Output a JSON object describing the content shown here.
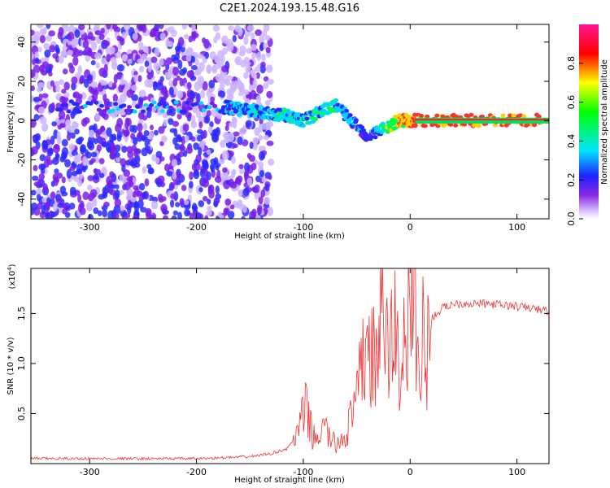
{
  "title": "C2E1.2024.193.15.48.G16",
  "colors": {
    "snr_line": "#f03232",
    "spectrum_low": "#8a2be2",
    "spectrum_core": "#00e5ff"
  },
  "chart_data": [
    {
      "id": "spectrogram",
      "type": "heatmap",
      "xlabel": "Height of straight line (km)",
      "ylabel": "Frequency (Hz)",
      "xlim": [
        -355,
        130
      ],
      "ylim": [
        -50,
        49
      ],
      "xticks": [
        -300,
        -200,
        -100,
        0,
        100
      ],
      "yticks": [
        -40,
        -20,
        0,
        20,
        40
      ],
      "description_points": [
        {
          "x": -330,
          "y": 7,
          "amplitude": 0.35
        },
        {
          "x": -175,
          "y": 7,
          "amplitude": 0.4
        },
        {
          "x": -150,
          "y": 5,
          "amplitude": 0.45
        },
        {
          "x": -120,
          "y": 3,
          "amplitude": 0.5
        },
        {
          "x": -100,
          "y": 0,
          "amplitude": 0.5
        },
        {
          "x": -70,
          "y": 8,
          "amplitude": 0.5
        },
        {
          "x": -40,
          "y": -8,
          "amplitude": 0.3
        },
        {
          "x": -10,
          "y": 0,
          "amplitude": 0.8
        },
        {
          "x": 5,
          "y": 0,
          "amplitude": 0.9
        },
        {
          "x": 60,
          "y": 0,
          "amplitude": 0.9
        },
        {
          "x": 125,
          "y": 0,
          "amplitude": 0.9
        }
      ],
      "colorbar": {
        "label": "Normalized spectral amplitude",
        "range": [
          0,
          1
        ],
        "ticks": [
          "0.0",
          "0.2",
          "0.4",
          "0.6",
          "0.8"
        ]
      }
    },
    {
      "id": "snr",
      "type": "line",
      "xlabel": "Height of straight line (km)",
      "ylabel": "SNR (10 * v/v)",
      "yscale_note": "(x10",
      "yscale_exp": "4",
      "yscale_close": ")",
      "xlim": [
        -355,
        130
      ],
      "ylim": [
        0,
        1.95
      ],
      "xticks": [
        -300,
        -200,
        -100,
        0,
        100
      ],
      "yticks": [
        0.5,
        1.0,
        1.5
      ],
      "ytick_labels": [
        "0.5",
        "1.0",
        "1.5"
      ],
      "series": [
        {
          "x": [
            -355,
            -300,
            -250,
            -200,
            -170,
            -150,
            -130,
            -115,
            -105,
            -98,
            -90,
            -80,
            -70,
            -60,
            -50,
            -45,
            -40,
            -35,
            -30,
            -25,
            -20,
            -15,
            -10,
            -5,
            0,
            5,
            8,
            10,
            12,
            14,
            20,
            30,
            40,
            60,
            80,
            100,
            115,
            130
          ],
          "y": [
            0.05,
            0.05,
            0.05,
            0.05,
            0.06,
            0.07,
            0.1,
            0.15,
            0.3,
            0.55,
            0.25,
            0.35,
            0.18,
            0.3,
            0.6,
            1.0,
            1.25,
            1.0,
            1.2,
            1.5,
            1.0,
            1.45,
            0.9,
            1.3,
            1.35,
            1.8,
            1.0,
            0.5,
            1.5,
            1.0,
            1.45,
            1.55,
            1.6,
            1.6,
            1.59,
            1.57,
            1.55,
            1.52
          ]
        }
      ]
    }
  ]
}
